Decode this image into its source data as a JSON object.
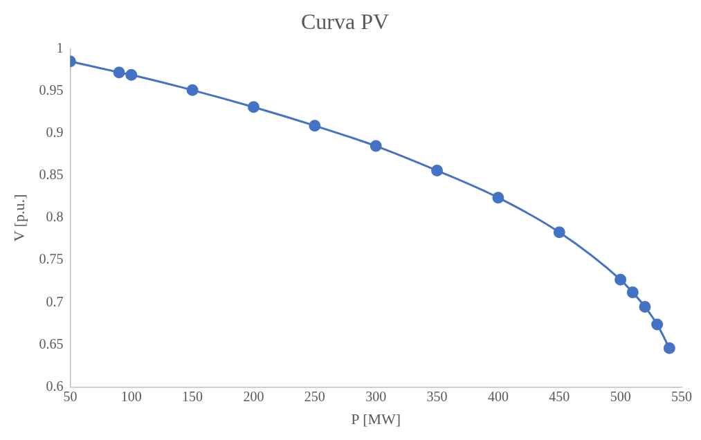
{
  "chart_data": {
    "type": "line",
    "title": "Curva PV",
    "xlabel": "P [MW]",
    "ylabel": "V [p.u.]",
    "x": [
      50,
      90,
      100,
      150,
      200,
      250,
      300,
      350,
      400,
      450,
      500,
      510,
      520,
      530,
      540
    ],
    "series": [
      {
        "color": "#4472c4",
        "values": [
          0.985,
          0.972,
          0.969,
          0.951,
          0.931,
          0.909,
          0.885,
          0.856,
          0.824,
          0.783,
          0.727,
          0.712,
          0.695,
          0.674,
          0.646
        ]
      }
    ],
    "xlim": [
      50,
      550
    ],
    "ylim": [
      0.6,
      1
    ],
    "xticks": [
      50,
      100,
      150,
      200,
      250,
      300,
      350,
      400,
      450,
      500,
      550
    ],
    "yticks": [
      0.6,
      0.65,
      0.7,
      0.75,
      0.8,
      0.85,
      0.9,
      0.95,
      1
    ],
    "marker": "circle",
    "line_style": "solid"
  }
}
